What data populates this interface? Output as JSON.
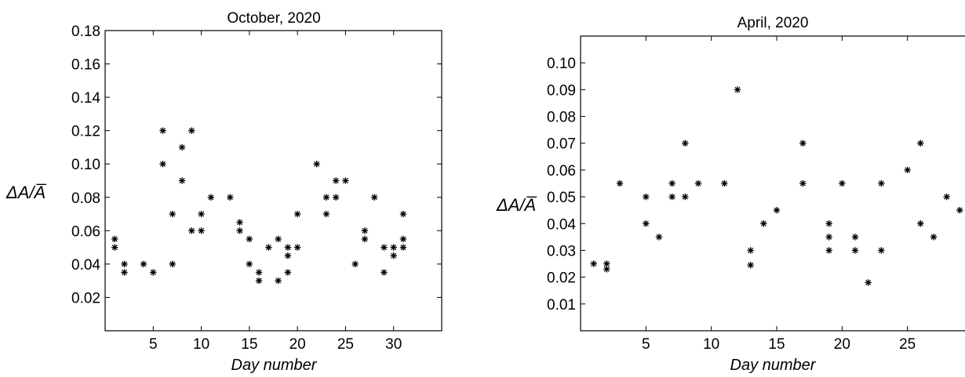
{
  "chart_data": [
    {
      "type": "scatter",
      "title": "October, 2020",
      "xlabel": "Day number",
      "ylabel": "ΔA/A̅",
      "xlim": [
        0,
        35
      ],
      "ylim": [
        0,
        0.18
      ],
      "xticks": [
        "5",
        "10",
        "15",
        "20",
        "25",
        "30"
      ],
      "yticks": [
        "0.02",
        "0.04",
        "0.06",
        "0.08",
        "0.10",
        "0.12",
        "0.14",
        "0.16",
        "0.18"
      ],
      "marker": "*",
      "grid": false,
      "points": [
        {
          "x": 1,
          "y": 0.055
        },
        {
          "x": 1,
          "y": 0.05
        },
        {
          "x": 2,
          "y": 0.04
        },
        {
          "x": 2,
          "y": 0.035
        },
        {
          "x": 4,
          "y": 0.04
        },
        {
          "x": 5,
          "y": 0.035
        },
        {
          "x": 6,
          "y": 0.12
        },
        {
          "x": 6,
          "y": 0.1
        },
        {
          "x": 7,
          "y": 0.07
        },
        {
          "x": 7,
          "y": 0.04
        },
        {
          "x": 8,
          "y": 0.11
        },
        {
          "x": 8,
          "y": 0.09
        },
        {
          "x": 9,
          "y": 0.12
        },
        {
          "x": 9,
          "y": 0.06
        },
        {
          "x": 10,
          "y": 0.07
        },
        {
          "x": 10,
          "y": 0.06
        },
        {
          "x": 11,
          "y": 0.08
        },
        {
          "x": 13,
          "y": 0.08
        },
        {
          "x": 14,
          "y": 0.065
        },
        {
          "x": 14,
          "y": 0.06
        },
        {
          "x": 15,
          "y": 0.055
        },
        {
          "x": 15,
          "y": 0.04
        },
        {
          "x": 16,
          "y": 0.035
        },
        {
          "x": 16,
          "y": 0.03
        },
        {
          "x": 17,
          "y": 0.05
        },
        {
          "x": 18,
          "y": 0.055
        },
        {
          "x": 18,
          "y": 0.03
        },
        {
          "x": 19,
          "y": 0.05
        },
        {
          "x": 19,
          "y": 0.045
        },
        {
          "x": 19,
          "y": 0.035
        },
        {
          "x": 20,
          "y": 0.07
        },
        {
          "x": 20,
          "y": 0.05
        },
        {
          "x": 22,
          "y": 0.1
        },
        {
          "x": 23,
          "y": 0.08
        },
        {
          "x": 23,
          "y": 0.07
        },
        {
          "x": 24,
          "y": 0.09
        },
        {
          "x": 24,
          "y": 0.08
        },
        {
          "x": 25,
          "y": 0.09
        },
        {
          "x": 26,
          "y": 0.04
        },
        {
          "x": 27,
          "y": 0.06
        },
        {
          "x": 27,
          "y": 0.055
        },
        {
          "x": 28,
          "y": 0.08
        },
        {
          "x": 29,
          "y": 0.05
        },
        {
          "x": 29,
          "y": 0.035
        },
        {
          "x": 30,
          "y": 0.05
        },
        {
          "x": 30,
          "y": 0.045
        },
        {
          "x": 31,
          "y": 0.07
        },
        {
          "x": 31,
          "y": 0.055
        },
        {
          "x": 31,
          "y": 0.05
        }
      ]
    },
    {
      "type": "scatter",
      "title": "April, 2020",
      "xlabel": "Day number",
      "ylabel": "ΔA/A̅",
      "xlim": [
        0,
        30
      ],
      "ylim": [
        0,
        0.11
      ],
      "xticks": [
        "5",
        "10",
        "15",
        "20",
        "25"
      ],
      "yticks": [
        "0.01",
        "0.02",
        "0.03",
        "0.04",
        "0.05",
        "0.06",
        "0.07",
        "0.08",
        "0.09",
        "0.10"
      ],
      "marker": "*",
      "grid": false,
      "points": [
        {
          "x": 1,
          "y": 0.025
        },
        {
          "x": 2,
          "y": 0.025
        },
        {
          "x": 2,
          "y": 0.023
        },
        {
          "x": 3,
          "y": 0.055
        },
        {
          "x": 5,
          "y": 0.05
        },
        {
          "x": 5,
          "y": 0.04
        },
        {
          "x": 6,
          "y": 0.035
        },
        {
          "x": 7,
          "y": 0.055
        },
        {
          "x": 7,
          "y": 0.05
        },
        {
          "x": 8,
          "y": 0.07
        },
        {
          "x": 8,
          "y": 0.05
        },
        {
          "x": 9,
          "y": 0.055
        },
        {
          "x": 11,
          "y": 0.055
        },
        {
          "x": 12,
          "y": 0.09
        },
        {
          "x": 13,
          "y": 0.03
        },
        {
          "x": 13,
          "y": 0.0245
        },
        {
          "x": 14,
          "y": 0.04
        },
        {
          "x": 15,
          "y": 0.045
        },
        {
          "x": 17,
          "y": 0.07
        },
        {
          "x": 17,
          "y": 0.055
        },
        {
          "x": 19,
          "y": 0.04
        },
        {
          "x": 19,
          "y": 0.035
        },
        {
          "x": 19,
          "y": 0.03
        },
        {
          "x": 20,
          "y": 0.055
        },
        {
          "x": 21,
          "y": 0.035
        },
        {
          "x": 21,
          "y": 0.03
        },
        {
          "x": 22,
          "y": 0.018
        },
        {
          "x": 23,
          "y": 0.055
        },
        {
          "x": 23,
          "y": 0.03
        },
        {
          "x": 25,
          "y": 0.06
        },
        {
          "x": 26,
          "y": 0.07
        },
        {
          "x": 26,
          "y": 0.04
        },
        {
          "x": 27,
          "y": 0.035
        },
        {
          "x": 28,
          "y": 0.05
        },
        {
          "x": 29,
          "y": 0.045
        }
      ]
    }
  ]
}
